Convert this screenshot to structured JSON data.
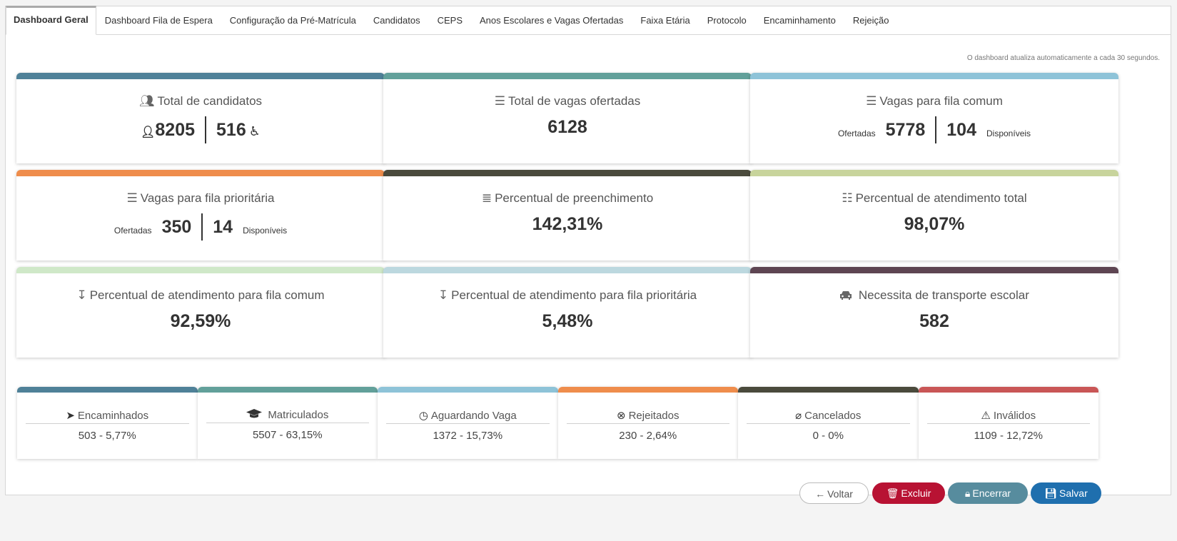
{
  "tabs": [
    {
      "label": "Dashboard Geral"
    },
    {
      "label": "Dashboard Fila de Espera"
    },
    {
      "label": "Configuração da Pré-Matrícula"
    },
    {
      "label": "Candidatos"
    },
    {
      "label": "CEPS"
    },
    {
      "label": "Anos Escolares e Vagas Ofertadas"
    },
    {
      "label": "Faixa Etária"
    },
    {
      "label": "Protocolo"
    },
    {
      "label": "Encaminhamento"
    },
    {
      "label": "Rejeição"
    }
  ],
  "refresh_note": "O dashboard atualiza automaticamente a cada 30 segundos.",
  "cards": {
    "total_candidatos": {
      "title": "Total de candidatos",
      "value_left": "8205",
      "value_right": "516",
      "icon": "users-icon",
      "color": "#4f8198"
    },
    "total_vagas": {
      "title": "Total de vagas ofertadas",
      "value": "6128",
      "icon": "list-icon",
      "color": "#62a09a"
    },
    "fila_comum": {
      "title": "Vagas para fila comum",
      "label_left": "Ofertadas",
      "value_left": "5778",
      "value_right": "104",
      "label_right": "Disponíveis",
      "icon": "list-icon",
      "color": "#8ec3d8"
    },
    "fila_prioritaria": {
      "title": "Vagas para fila prioritária",
      "label_left": "Ofertadas",
      "value_left": "350",
      "value_right": "14",
      "label_right": "Disponíveis",
      "icon": "list-icon",
      "color": "#ef8d4c"
    },
    "preenchimento": {
      "title": "Percentual de preenchimento",
      "value": "142,31%",
      "icon": "indent-icon",
      "color": "#4a4a3c"
    },
    "atendimento_total": {
      "title": "Percentual de atendimento total",
      "value": "98,07%",
      "icon": "sitemap-icon",
      "color": "#c8d49c"
    },
    "atendimento_comum": {
      "title": "Percentual de atendimento para fila comum",
      "value": "92,59%",
      "icon": "sort-icon",
      "color": "#cfe8c8"
    },
    "atendimento_prioritaria": {
      "title": "Percentual de atendimento para fila prioritária",
      "value": "5,48%",
      "icon": "sort-icon",
      "color": "#bcd8df"
    },
    "transporte": {
      "title": "Necessita de transporte escolar",
      "value": "582",
      "icon": "car-icon",
      "color": "#5e4552"
    }
  },
  "statuses": [
    {
      "label": "Encaminhados",
      "value": "503 - 5,77%",
      "icon": "paper-plane-icon",
      "color": "#4f8198"
    },
    {
      "label": "Matriculados",
      "value": "5507 - 63,15%",
      "icon": "graduation-cap-icon",
      "color": "#62a09a"
    },
    {
      "label": "Aguardando Vaga",
      "value": "1372 - 15,73%",
      "icon": "clock-icon",
      "color": "#8ec3d8"
    },
    {
      "label": "Rejeitados",
      "value": "230 - 2,64%",
      "icon": "times-circle-icon",
      "color": "#ef8d4c"
    },
    {
      "label": "Cancelados",
      "value": "0 - 0%",
      "icon": "ban-icon",
      "color": "#4a4a3c"
    },
    {
      "label": "Inválidos",
      "value": "1109 - 12,72%",
      "icon": "warning-icon",
      "color": "#c95656"
    }
  ],
  "buttons": {
    "voltar": "Voltar",
    "excluir": "Excluir",
    "encerrar": "Encerrar",
    "salvar": "Salvar"
  }
}
